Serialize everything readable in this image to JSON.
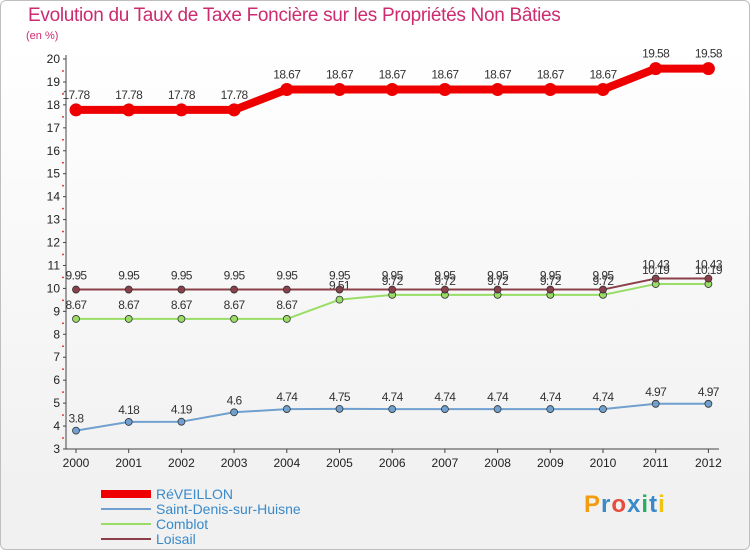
{
  "title": "Evolution du Taux de Taxe Foncière sur les Propriétés Non Bâties",
  "unit": "(en %)",
  "logo": {
    "text": "Proxiti",
    "colors": [
      "#f39c12",
      "#3a89c9",
      "#e74c3c",
      "#3a89c9",
      "#27ae60",
      "#3a89c9",
      "#f1c40f"
    ]
  },
  "chart_data": {
    "type": "line",
    "title": "Evolution du Taux de Taxe Foncière sur les Propriétés Non Bâties",
    "ylabel": "(en %)",
    "xlabel": "",
    "ylim": [
      3,
      20
    ],
    "yticks": [
      "3",
      "4",
      "5",
      "6",
      "7",
      "8",
      "9",
      "10",
      "11",
      "12",
      "13",
      "14",
      "15",
      "16",
      "17",
      "18",
      "19",
      "20"
    ],
    "categories": [
      "2000",
      "2001",
      "2002",
      "2003",
      "2004",
      "2005",
      "2006",
      "2007",
      "2008",
      "2009",
      "2010",
      "2011",
      "2012"
    ],
    "legend_position": "bottom-left",
    "series": [
      {
        "name": "RéVEILLON",
        "color": "#ee0000",
        "values": [
          17.78,
          17.78,
          17.78,
          17.78,
          18.67,
          18.67,
          18.67,
          18.67,
          18.67,
          18.67,
          18.67,
          19.58,
          19.58
        ],
        "labels": [
          "17.78",
          "17.78",
          "17.78",
          "17.78",
          "18.67",
          "18.67",
          "18.67",
          "18.67",
          "18.67",
          "18.67",
          "18.67",
          "19.58",
          "19.58"
        ]
      },
      {
        "name": "Saint-Denis-sur-Huisne",
        "color": "#6fa0cf",
        "values": [
          3.8,
          4.18,
          4.19,
          4.6,
          4.74,
          4.75,
          4.74,
          4.74,
          4.74,
          4.74,
          4.74,
          4.97,
          4.97
        ],
        "labels": [
          "3.8",
          "4.18",
          "4.19",
          "4.6",
          "4.74",
          "4.75",
          "4.74",
          "4.74",
          "4.74",
          "4.74",
          "4.74",
          "4.97",
          "4.97"
        ]
      },
      {
        "name": "Comblot",
        "color": "#99dd66",
        "values": [
          8.67,
          8.67,
          8.67,
          8.67,
          8.67,
          9.51,
          9.72,
          9.72,
          9.72,
          9.72,
          9.72,
          10.19,
          10.19
        ],
        "labels": [
          "8.67",
          "8.67",
          "8.67",
          "8.67",
          "8.67",
          "9.51",
          "9.72",
          "9.72",
          "9.72",
          "9.72",
          "9.72",
          "10.19",
          "10.19"
        ]
      },
      {
        "name": "Loisail",
        "color": "#8b4049",
        "values": [
          9.95,
          9.95,
          9.95,
          9.95,
          9.95,
          9.95,
          9.95,
          9.95,
          9.95,
          9.95,
          9.95,
          10.43,
          10.43
        ],
        "labels": [
          "9.95",
          "9.95",
          "9.95",
          "9.95",
          "9.95",
          "9.95",
          "9.95",
          "9.95",
          "9.95",
          "9.95",
          "9.95",
          "10.43",
          "10.43"
        ]
      }
    ]
  }
}
